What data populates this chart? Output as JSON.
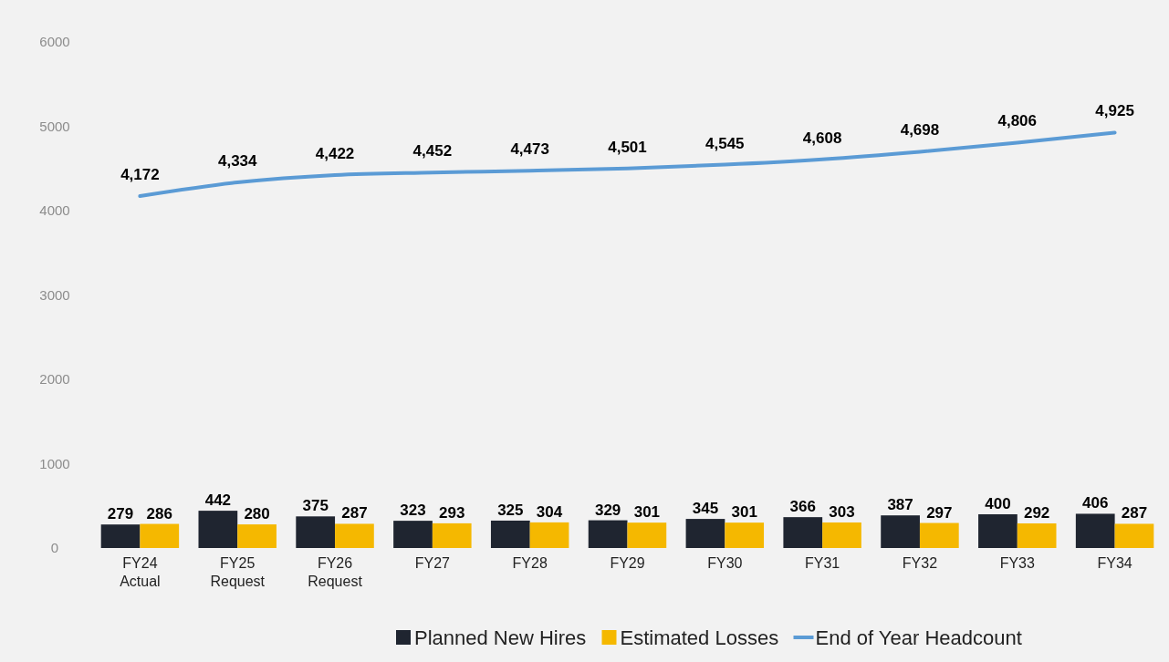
{
  "chart_data": {
    "type": "bar",
    "categories": [
      "FY24 Actual",
      "FY25 Request",
      "FY26 Request",
      "FY27",
      "FY28",
      "FY29",
      "FY30",
      "FY31",
      "FY32",
      "FY33",
      "FY34"
    ],
    "series": [
      {
        "name": "Planned New Hires",
        "color": "#1f2530",
        "values": [
          279,
          442,
          375,
          323,
          325,
          329,
          345,
          366,
          387,
          400,
          406
        ]
      },
      {
        "name": "Estimated Losses",
        "color": "#f5b800",
        "values": [
          286,
          280,
          287,
          293,
          304,
          301,
          301,
          303,
          297,
          292,
          287
        ]
      },
      {
        "name": "End of Year Headcount",
        "type": "line",
        "color": "#5b9bd5",
        "values": [
          4172,
          4334,
          4422,
          4452,
          4473,
          4501,
          4545,
          4608,
          4698,
          4806,
          4925
        ],
        "value_labels": [
          "4,172",
          "4,334",
          "4,422",
          "4,452",
          "4,473",
          "4,501",
          "4,545",
          "4,608",
          "4,698",
          "4,806",
          "4,925"
        ]
      }
    ],
    "ylim": [
      0,
      6000
    ],
    "yticks": [
      0,
      1000,
      2000,
      3000,
      4000,
      5000,
      6000
    ],
    "data_labels": true,
    "legend": "bottom"
  }
}
